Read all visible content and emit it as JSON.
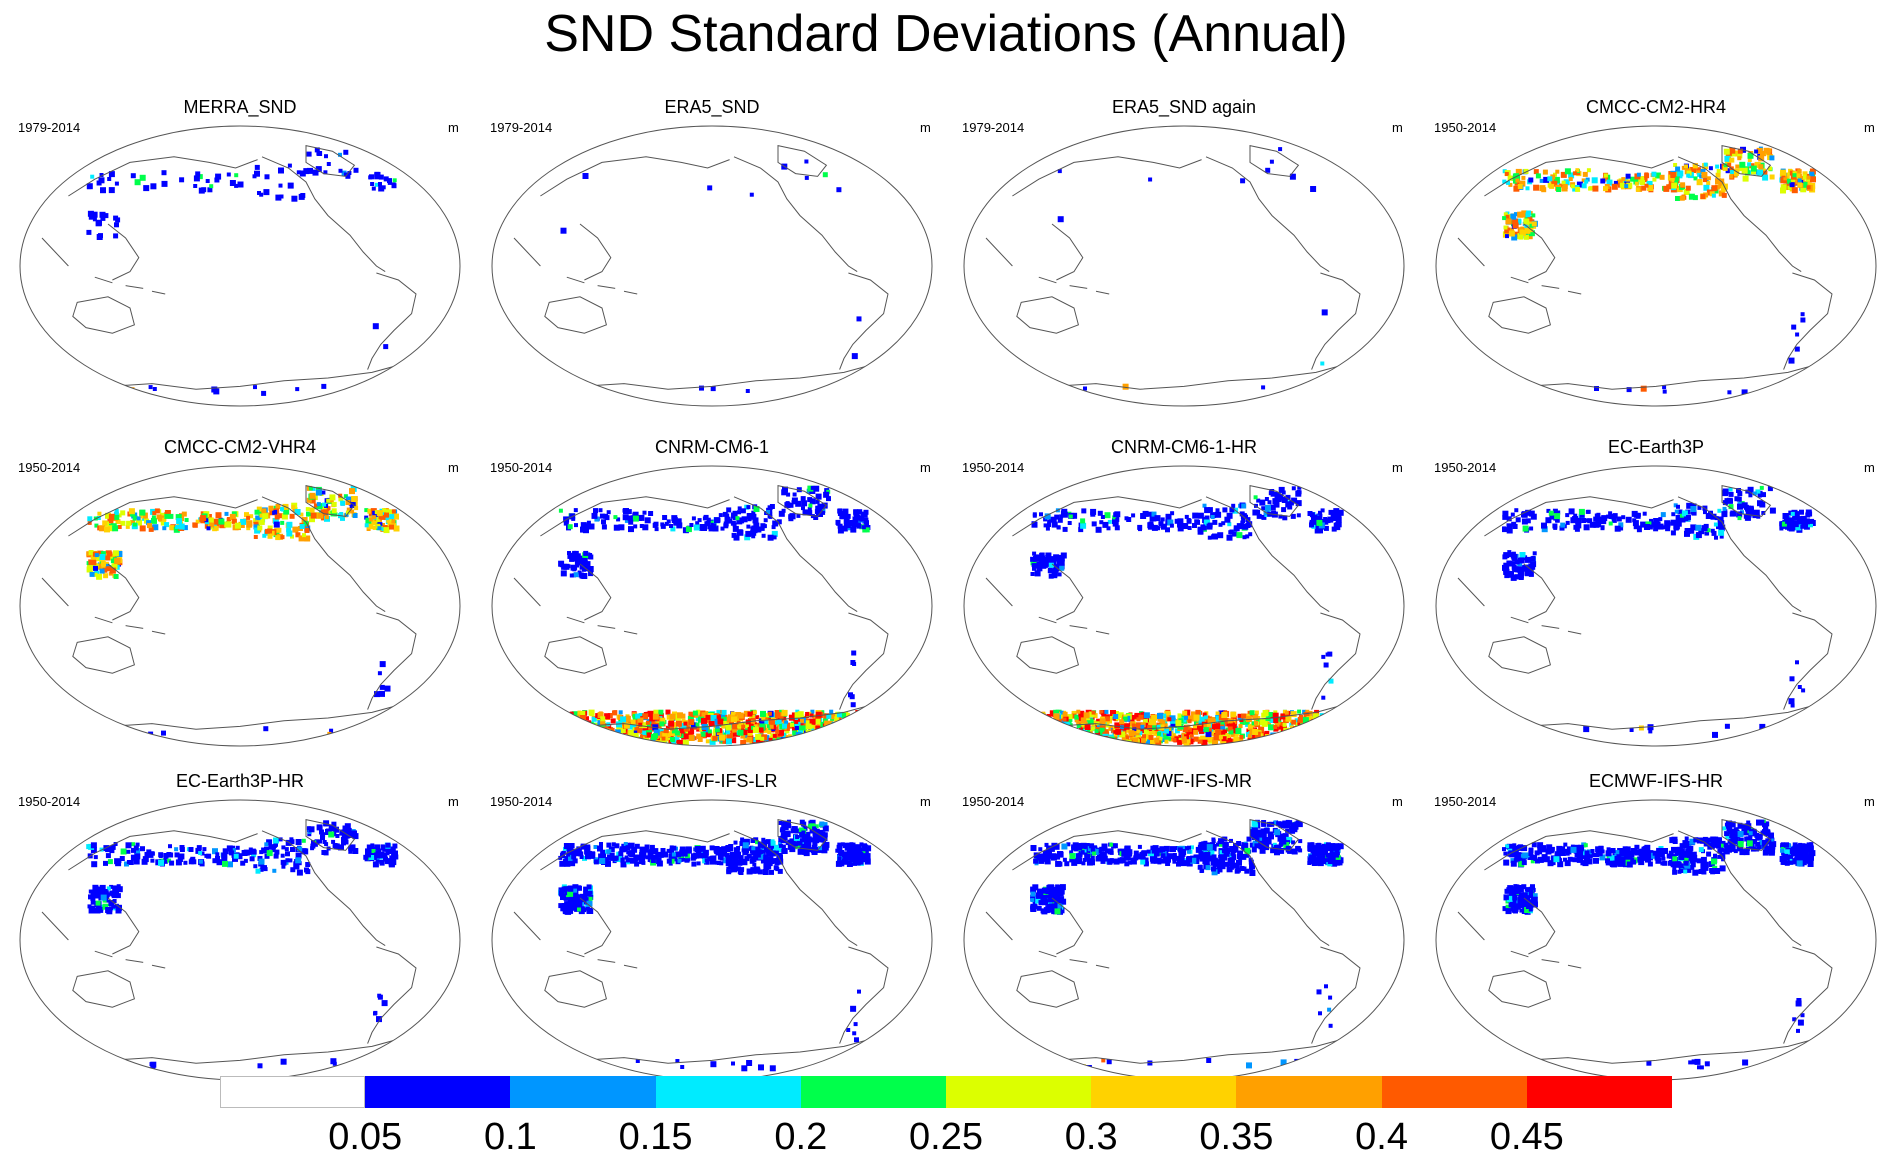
{
  "figure": {
    "title": "SND Standard Deviations (Annual)"
  },
  "panels": [
    {
      "title": "MERRA_SND",
      "years": "1979-2014",
      "unit": "m",
      "snow": "low"
    },
    {
      "title": "ERA5_SND",
      "years": "1979-2014",
      "unit": "m",
      "snow": "minimal"
    },
    {
      "title": "ERA5_SND again",
      "years": "1979-2014",
      "unit": "m",
      "snow": "minimal"
    },
    {
      "title": "CMCC-CM2-HR4",
      "years": "1950-2014",
      "unit": "m",
      "snow": "high"
    },
    {
      "title": "CMCC-CM2-VHR4",
      "years": "1950-2014",
      "unit": "m",
      "snow": "high"
    },
    {
      "title": "CNRM-CM6-1",
      "years": "1950-2014",
      "unit": "m",
      "snow": "antarctic"
    },
    {
      "title": "CNRM-CM6-1-HR",
      "years": "1950-2014",
      "unit": "m",
      "snow": "antarctic"
    },
    {
      "title": "EC-Earth3P",
      "years": "1950-2014",
      "unit": "m",
      "snow": "medium"
    },
    {
      "title": "EC-Earth3P-HR",
      "years": "1950-2014",
      "unit": "m",
      "snow": "medium"
    },
    {
      "title": "ECMWF-IFS-LR",
      "years": "1950-2014",
      "unit": "m",
      "snow": "dense"
    },
    {
      "title": "ECMWF-IFS-MR",
      "years": "1950-2014",
      "unit": "m",
      "snow": "dense"
    },
    {
      "title": "ECMWF-IFS-HR",
      "years": "1950-2014",
      "unit": "m",
      "snow": "dense"
    }
  ],
  "colorbar": {
    "labels": [
      "0.05",
      "0.1",
      "0.15",
      "0.2",
      "0.25",
      "0.3",
      "0.35",
      "0.4",
      "0.45"
    ],
    "colors": [
      "#ffffff",
      "#0000ff",
      "#0096ff",
      "#00ebff",
      "#00ff4b",
      "#dcff00",
      "#ffd200",
      "#ffa000",
      "#ff5a00",
      "#ff0000"
    ]
  }
}
